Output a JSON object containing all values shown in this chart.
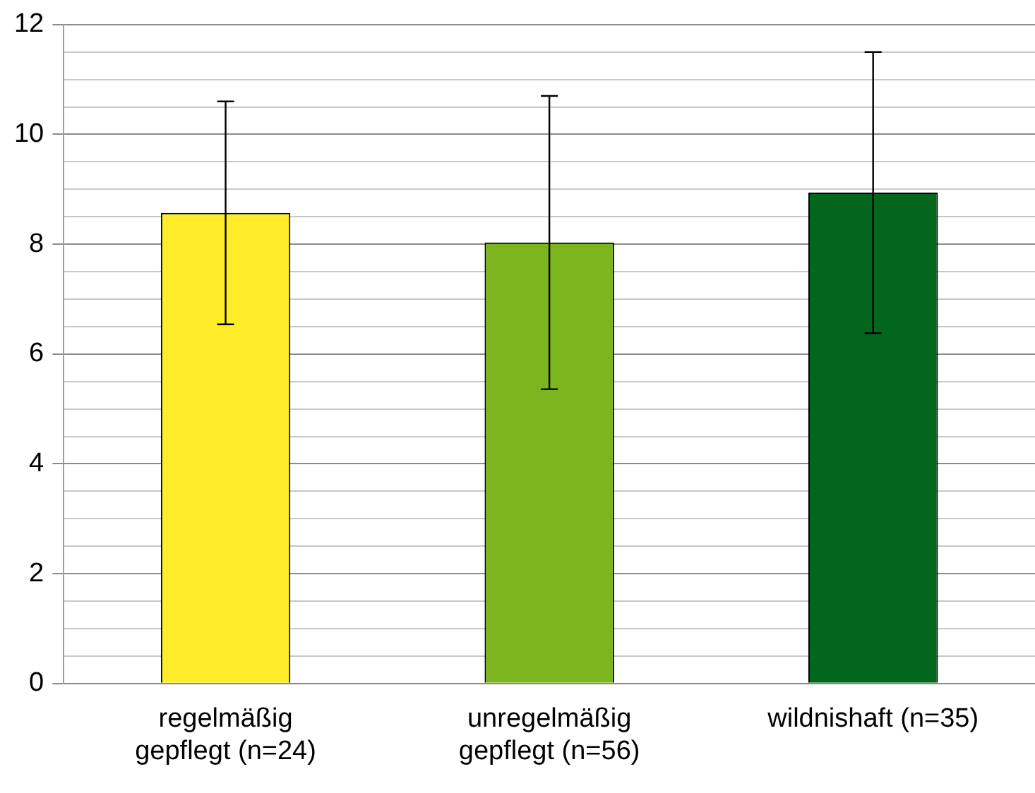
{
  "chart_data": {
    "type": "bar",
    "categories": [
      "regelmäßig gepflegt (n=24)",
      "unregelmäßig gepflegt (n=56)",
      "wildnishaft (n=35)"
    ],
    "values": [
      8.57,
      8.03,
      8.94
    ],
    "colors": [
      "#ffed29",
      "#7db51f",
      "#03661d"
    ],
    "errors": [
      2.03,
      2.67,
      2.56
    ],
    "ylim": [
      0,
      12
    ],
    "yticks": [
      0,
      {
        "value": 0.5,
        "label": null
      },
      {
        "value": 1,
        "label": null
      },
      {
        "value": 1.5,
        "label": null
      },
      2,
      {
        "value": 2.5,
        "label": null
      },
      {
        "value": 3,
        "label": null
      },
      {
        "value": 3.5,
        "label": null
      },
      4,
      {
        "value": 4.5,
        "label": null
      },
      {
        "value": 5,
        "label": null
      },
      {
        "value": 5.5,
        "label": null
      },
      6,
      {
        "value": 6.5,
        "label": null
      },
      {
        "value": 7,
        "label": null
      },
      {
        "value": 7.5,
        "label": null
      },
      8,
      {
        "value": 8.5,
        "label": null
      },
      {
        "value": 9,
        "label": null
      },
      {
        "value": 9.5,
        "label": null
      },
      10,
      {
        "value": 10.5,
        "label": null
      },
      {
        "value": 11,
        "label": null
      },
      {
        "value": 11.5,
        "label": null
      },
      12
    ],
    "grid": "y"
  }
}
